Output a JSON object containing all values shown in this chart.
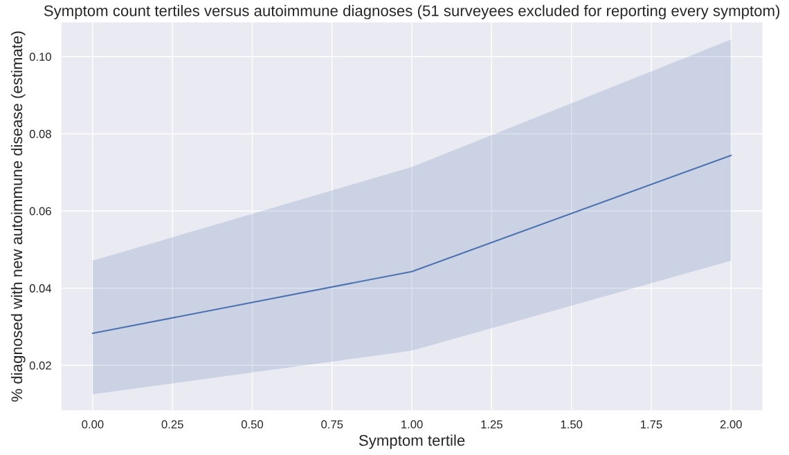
{
  "chart_data": {
    "type": "line",
    "title": "Symptom count tertiles versus autoimmune diagnoses (51 surveyees excluded for reporting every symptom)",
    "xlabel": "Symptom tertile",
    "ylabel": "% diagnosed with new autoimmune disease (estimate)",
    "x": [
      0,
      1,
      2
    ],
    "series": [
      {
        "color": "#4c72b0",
        "values": [
          0.0283,
          0.0443,
          0.0744
        ],
        "lower": [
          0.0125,
          0.0238,
          0.0471
        ],
        "upper": [
          0.0471,
          0.0714,
          0.1044
        ]
      }
    ],
    "xlim": [
      -0.1,
      2.1
    ],
    "xticks": [
      {
        "value": 0,
        "label": "0.00"
      },
      {
        "value": 0.25,
        "label": "0.25"
      },
      {
        "value": 0.5,
        "label": "0.50"
      },
      {
        "value": 0.75,
        "label": "0.75"
      },
      {
        "value": 1,
        "label": "1.00"
      },
      {
        "value": 1.25,
        "label": "1.25"
      },
      {
        "value": 1.5,
        "label": "1.50"
      },
      {
        "value": 1.75,
        "label": "1.75"
      },
      {
        "value": 2,
        "label": "2.00"
      }
    ],
    "ylim": [
      0.0082,
      0.109
    ],
    "yticks": [
      {
        "value": 0.02,
        "label": "0.02"
      },
      {
        "value": 0.04,
        "label": "0.04"
      },
      {
        "value": 0.06,
        "label": "0.06"
      },
      {
        "value": 0.08,
        "label": "0.08"
      },
      {
        "value": 0.1,
        "label": "0.10"
      }
    ],
    "grid": true
  }
}
